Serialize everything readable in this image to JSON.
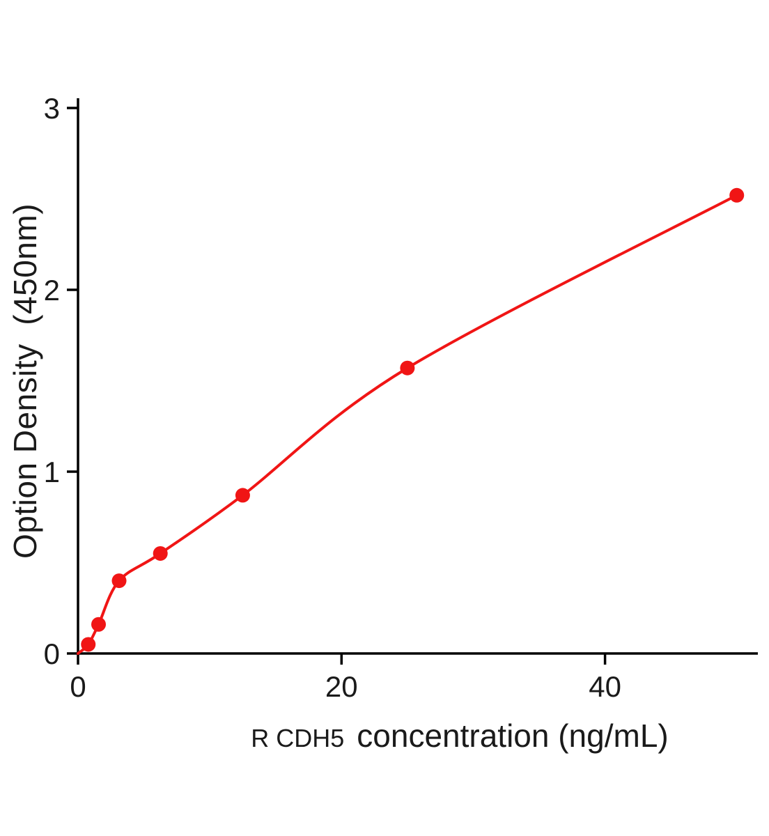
{
  "chart_data": {
    "type": "scatter",
    "title": "",
    "xlabel_prefix": "R CDH5",
    "xlabel_main": "concentration (ng/mL)",
    "ylabel": "Option Density  (450nm)",
    "xlim": [
      0,
      51.6
    ],
    "ylim": [
      0,
      3
    ],
    "xticks": [
      0,
      20,
      40
    ],
    "yticks": [
      0,
      1,
      2,
      3
    ],
    "x": [
      0.78,
      1.56,
      3.12,
      6.25,
      12.5,
      25,
      50
    ],
    "y": [
      0.05,
      0.16,
      0.4,
      0.55,
      0.87,
      1.57,
      2.52
    ],
    "curve_start": [
      0,
      0
    ],
    "color": "#f01515",
    "axis_color": "#000000",
    "text_color": "#1a1a1a",
    "grid": false,
    "legend": "none"
  }
}
